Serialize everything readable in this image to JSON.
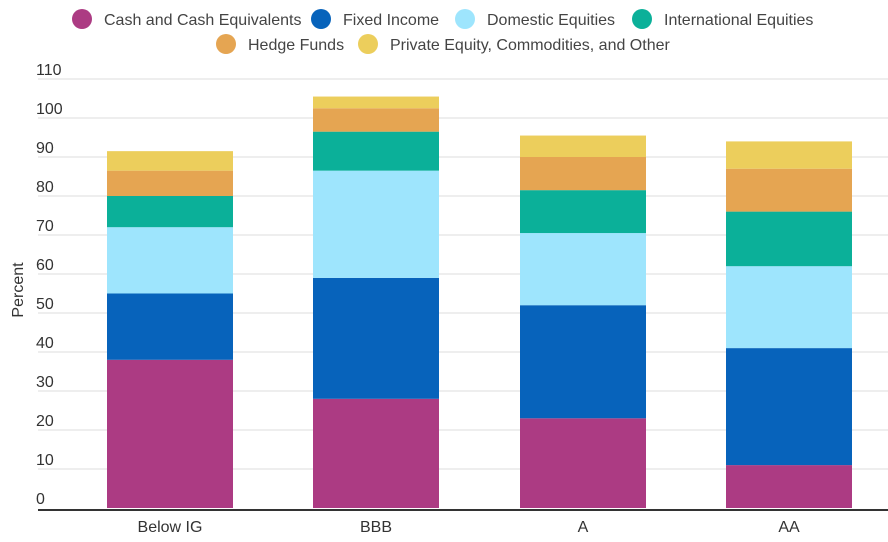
{
  "chart_data": {
    "type": "bar",
    "stacked": true,
    "title": "",
    "xlabel": "",
    "ylabel": "Percent",
    "ylim": [
      0,
      110
    ],
    "yticks": [
      0,
      10,
      20,
      30,
      40,
      50,
      60,
      70,
      80,
      90,
      100,
      110
    ],
    "grid": true,
    "legend_position": "top",
    "categories": [
      "Below IG",
      "BBB",
      "A",
      "AA"
    ],
    "series": [
      {
        "name": "Cash and Cash Equivalents",
        "color": "#ac3b83",
        "values": [
          38,
          28,
          23,
          11
        ]
      },
      {
        "name": "Fixed Income",
        "color": "#0763bb",
        "values": [
          17,
          31,
          29,
          30
        ]
      },
      {
        "name": "Domestic Equities",
        "color": "#9ee5fd",
        "values": [
          17,
          27.5,
          18.5,
          21
        ]
      },
      {
        "name": "International Equities",
        "color": "#0bb099",
        "values": [
          8,
          10,
          11,
          14
        ]
      },
      {
        "name": "Hedge Funds",
        "color": "#e5a552",
        "values": [
          6.5,
          6,
          8.5,
          11
        ]
      },
      {
        "name": "Private Equity, Commodities, and Other",
        "color": "#ecce5c",
        "values": [
          5,
          3,
          5.5,
          7
        ]
      }
    ]
  }
}
